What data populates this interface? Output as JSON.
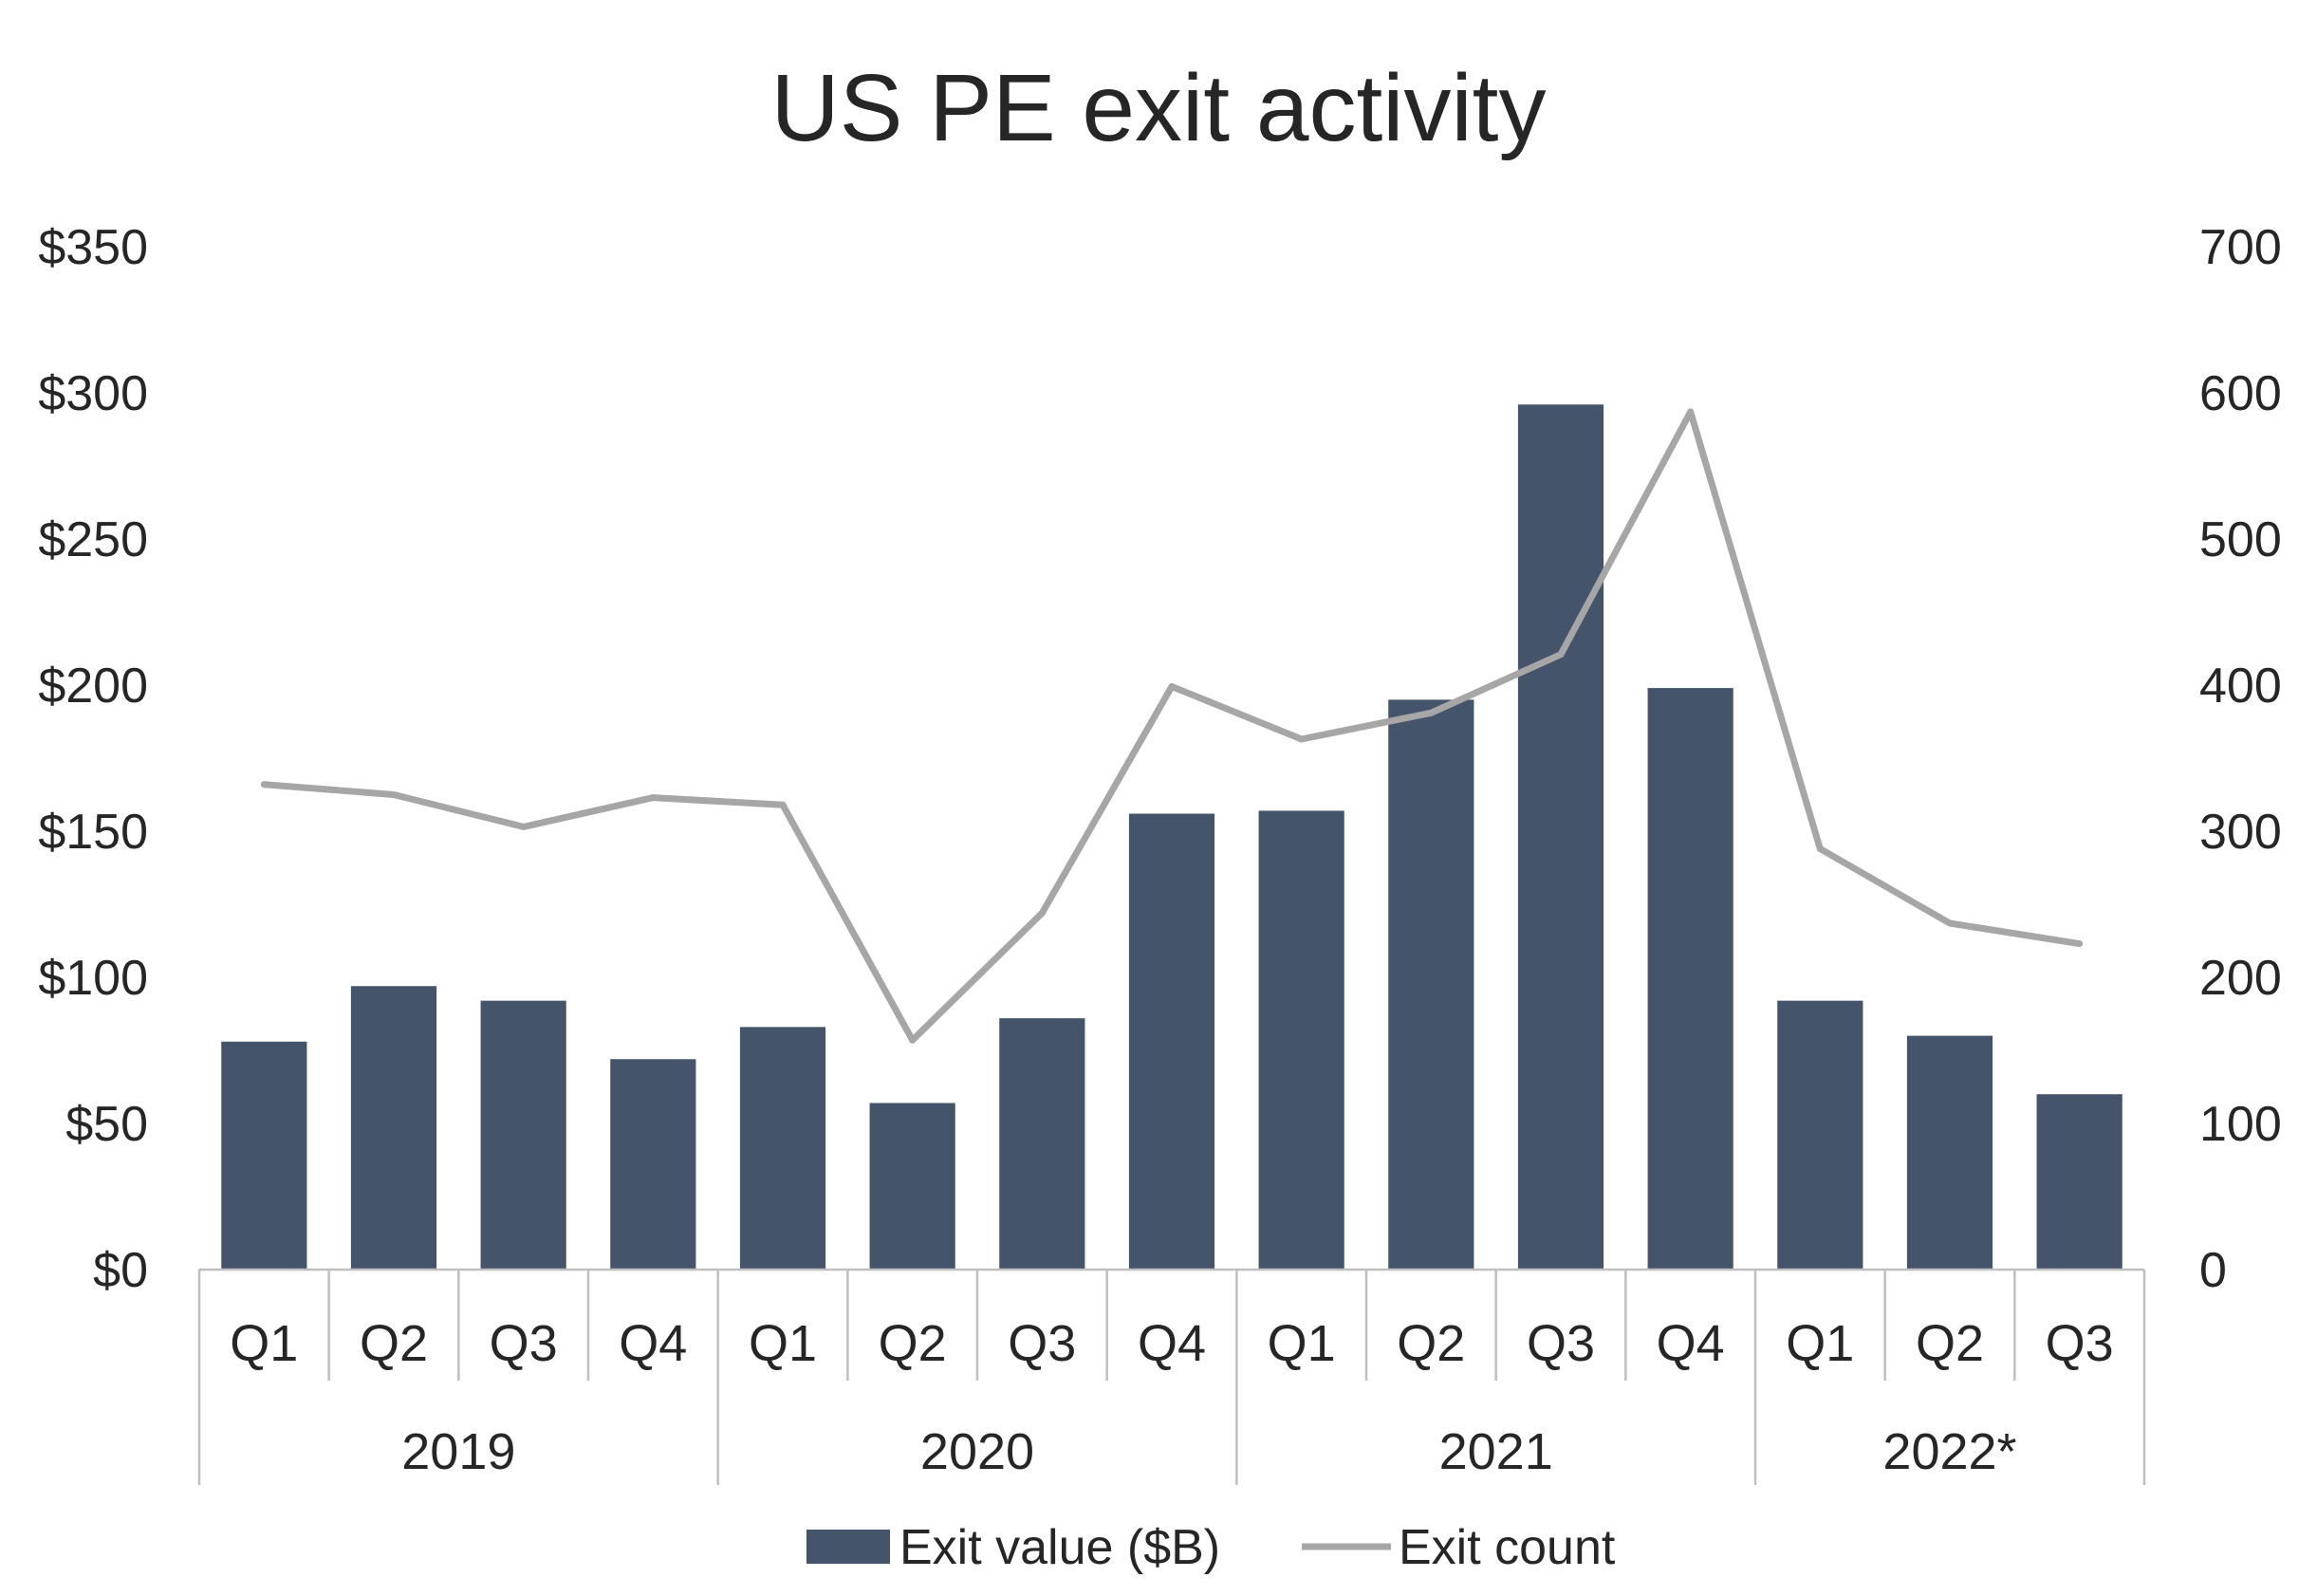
{
  "chart_data": {
    "type": "bar",
    "title": "US PE exit activity",
    "xlabel": "",
    "ylabel": "",
    "y2label": "",
    "categories": [
      "Q1",
      "Q2",
      "Q3",
      "Q4",
      "Q1",
      "Q2",
      "Q3",
      "Q4",
      "Q1",
      "Q2",
      "Q3",
      "Q4",
      "Q1",
      "Q2",
      "Q3"
    ],
    "groups": [
      {
        "label": "2019",
        "count": 4
      },
      {
        "label": "2020",
        "count": 4
      },
      {
        "label": "2021",
        "count": 4
      },
      {
        "label": "2022*",
        "count": 3
      }
    ],
    "series": [
      {
        "name": "Exit value ($B)",
        "type": "bar",
        "axis": "left",
        "color": "#44546a",
        "values": [
          78,
          97,
          92,
          72,
          83,
          57,
          86,
          156,
          157,
          195,
          296,
          199,
          92,
          80,
          60
        ]
      },
      {
        "name": "Exit count",
        "type": "line",
        "axis": "right",
        "color": "#a6a6a6",
        "values": [
          332,
          325,
          303,
          323,
          318,
          157,
          244,
          399,
          363,
          381,
          421,
          587,
          288,
          237,
          223
        ]
      }
    ],
    "ylim": [
      0,
      350
    ],
    "y2lim": [
      0,
      700
    ],
    "yticks": [
      "$0",
      "$50",
      "$100",
      "$150",
      "$200",
      "$250",
      "$300",
      "$350"
    ],
    "y2ticks": [
      "0",
      "100",
      "200",
      "300",
      "400",
      "500",
      "600",
      "700"
    ],
    "grid": false,
    "legend_position": "bottom"
  }
}
